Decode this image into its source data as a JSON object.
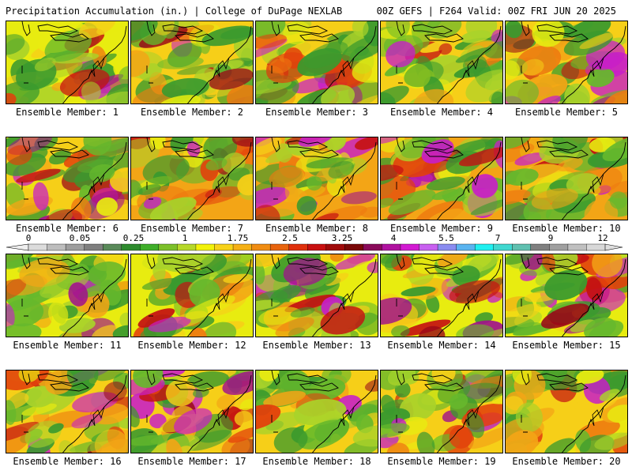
{
  "header": {
    "left": "Precipitation Accumulation (in.) | College of DuPage NEXLAB",
    "right": "00Z GEFS | F264 Valid: 00Z FRI JUN 20 2025"
  },
  "colorbar": {
    "tick_labels": [
      "0",
      "0.05",
      "0.25",
      "1",
      "1.75",
      "2.5",
      "3.25",
      "4",
      "5.5",
      "7",
      "9",
      "12"
    ],
    "colors": [
      "#dcdcdc",
      "#bdbdbd",
      "#9e9e9e",
      "#7f7f7f",
      "#5a8a5a",
      "#2e8b2e",
      "#3fae2a",
      "#7cc02a",
      "#b6d82a",
      "#f2f20a",
      "#f7d21a",
      "#f5b016",
      "#f08c12",
      "#e8640e",
      "#e0300c",
      "#c81010",
      "#a00a0a",
      "#7a0808",
      "#8a0a5a",
      "#b012a0",
      "#d21ad2",
      "#c860f0",
      "#8a8cf0",
      "#5ab4f0",
      "#20f0f0",
      "#40d8d0",
      "#60c0b0",
      "#808080",
      "#a0a0a0",
      "#c0c0c0",
      "#d8d8d8"
    ]
  },
  "panels": [
    {
      "member": 1,
      "label": "Ensemble Member: 1"
    },
    {
      "member": 2,
      "label": "Ensemble Member: 2"
    },
    {
      "member": 3,
      "label": "Ensemble Member: 3"
    },
    {
      "member": 4,
      "label": "Ensemble Member: 4"
    },
    {
      "member": 5,
      "label": "Ensemble Member: 5"
    },
    {
      "member": 6,
      "label": "Ensemble Member: 6"
    },
    {
      "member": 7,
      "label": "Ensemble Member: 7"
    },
    {
      "member": 8,
      "label": "Ensemble Member: 8"
    },
    {
      "member": 9,
      "label": "Ensemble Member: 9"
    },
    {
      "member": 10,
      "label": "Ensemble Member: 10"
    },
    {
      "member": 11,
      "label": "Ensemble Member: 11"
    },
    {
      "member": 12,
      "label": "Ensemble Member: 12"
    },
    {
      "member": 13,
      "label": "Ensemble Member: 13"
    },
    {
      "member": 14,
      "label": "Ensemble Member: 14"
    },
    {
      "member": 15,
      "label": "Ensemble Member: 15"
    },
    {
      "member": 16,
      "label": "Ensemble Member: 16"
    },
    {
      "member": 17,
      "label": "Ensemble Member: 17"
    },
    {
      "member": 18,
      "label": "Ensemble Member: 18"
    },
    {
      "member": 19,
      "label": "Ensemble Member: 19"
    },
    {
      "member": 20,
      "label": "Ensemble Member: 20"
    }
  ]
}
